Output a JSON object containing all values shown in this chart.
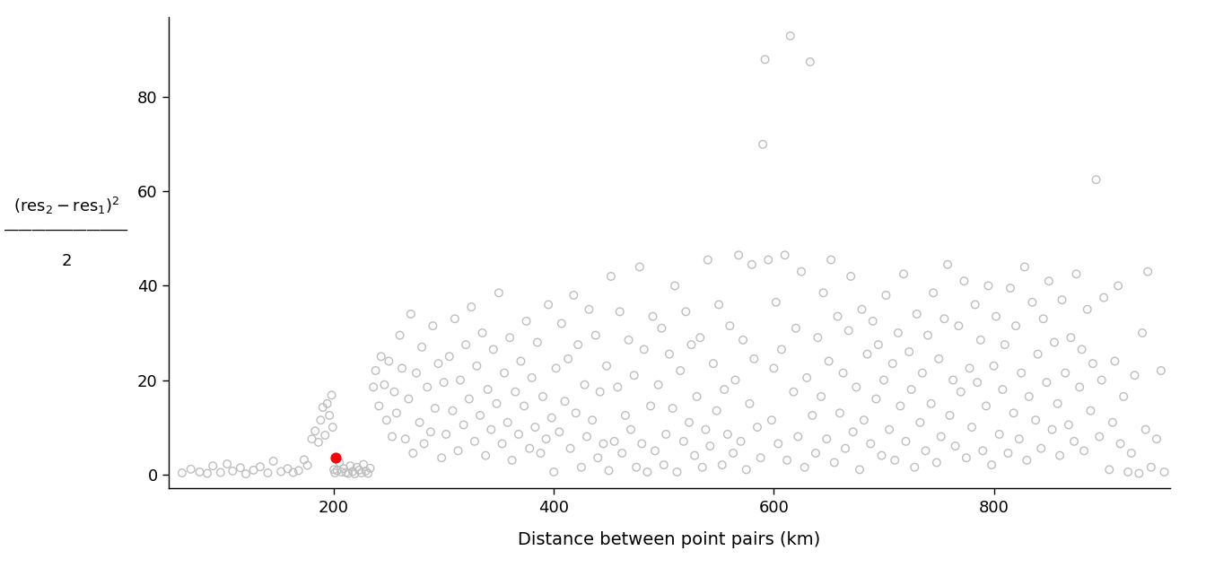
{
  "title": "",
  "xlabel": "Distance between point pairs (km)",
  "xlim": [
    50,
    960
  ],
  "ylim": [
    -3,
    97
  ],
  "xticks": [
    200,
    400,
    600,
    800
  ],
  "yticks": [
    0,
    20,
    40,
    60,
    80
  ],
  "background_color": "#ffffff",
  "circle_color": "#bebebe",
  "red_dot_color": "#ff0000",
  "red_dot_x": 202,
  "red_dot_y": 3.5,
  "scatter_points": [
    [
      62,
      0.3
    ],
    [
      70,
      1.1
    ],
    [
      78,
      0.5
    ],
    [
      85,
      0.2
    ],
    [
      90,
      1.8
    ],
    [
      97,
      0.4
    ],
    [
      103,
      2.2
    ],
    [
      108,
      0.7
    ],
    [
      115,
      1.4
    ],
    [
      120,
      0.1
    ],
    [
      127,
      0.9
    ],
    [
      133,
      1.6
    ],
    [
      140,
      0.3
    ],
    [
      145,
      2.8
    ],
    [
      152,
      0.6
    ],
    [
      158,
      1.2
    ],
    [
      163,
      0.4
    ],
    [
      168,
      0.8
    ],
    [
      173,
      3.1
    ],
    [
      176,
      1.9
    ],
    [
      180,
      7.5
    ],
    [
      183,
      9.2
    ],
    [
      186,
      6.8
    ],
    [
      188,
      11.5
    ],
    [
      190,
      14.2
    ],
    [
      192,
      8.3
    ],
    [
      194,
      15.0
    ],
    [
      196,
      12.5
    ],
    [
      198,
      16.8
    ],
    [
      199,
      10.0
    ],
    [
      200,
      1.0
    ],
    [
      201,
      0.3
    ],
    [
      203,
      0.8
    ],
    [
      205,
      2.5
    ],
    [
      207,
      0.5
    ],
    [
      209,
      1.2
    ],
    [
      211,
      0.4
    ],
    [
      213,
      0.2
    ],
    [
      215,
      1.8
    ],
    [
      217,
      0.6
    ],
    [
      219,
      0.1
    ],
    [
      221,
      1.5
    ],
    [
      223,
      0.9
    ],
    [
      225,
      0.3
    ],
    [
      227,
      2.1
    ],
    [
      229,
      0.7
    ],
    [
      231,
      0.2
    ],
    [
      233,
      1.3
    ],
    [
      236,
      18.5
    ],
    [
      238,
      22.0
    ],
    [
      241,
      14.5
    ],
    [
      243,
      25.0
    ],
    [
      246,
      19.0
    ],
    [
      248,
      11.5
    ],
    [
      250,
      24.0
    ],
    [
      253,
      8.0
    ],
    [
      255,
      17.5
    ],
    [
      257,
      13.0
    ],
    [
      260,
      29.5
    ],
    [
      262,
      22.5
    ],
    [
      265,
      7.5
    ],
    [
      268,
      16.0
    ],
    [
      270,
      34.0
    ],
    [
      272,
      4.5
    ],
    [
      275,
      21.5
    ],
    [
      278,
      11.0
    ],
    [
      280,
      27.0
    ],
    [
      282,
      6.5
    ],
    [
      285,
      18.5
    ],
    [
      288,
      9.0
    ],
    [
      290,
      31.5
    ],
    [
      292,
      14.0
    ],
    [
      295,
      23.5
    ],
    [
      298,
      3.5
    ],
    [
      300,
      19.5
    ],
    [
      302,
      8.5
    ],
    [
      305,
      25.0
    ],
    [
      308,
      13.5
    ],
    [
      310,
      33.0
    ],
    [
      313,
      5.0
    ],
    [
      315,
      20.0
    ],
    [
      318,
      10.5
    ],
    [
      320,
      27.5
    ],
    [
      323,
      16.0
    ],
    [
      325,
      35.5
    ],
    [
      328,
      7.0
    ],
    [
      330,
      23.0
    ],
    [
      333,
      12.5
    ],
    [
      335,
      30.0
    ],
    [
      338,
      4.0
    ],
    [
      340,
      18.0
    ],
    [
      343,
      9.5
    ],
    [
      345,
      26.5
    ],
    [
      348,
      15.0
    ],
    [
      350,
      38.5
    ],
    [
      353,
      6.5
    ],
    [
      355,
      21.5
    ],
    [
      358,
      11.0
    ],
    [
      360,
      29.0
    ],
    [
      362,
      3.0
    ],
    [
      365,
      17.5
    ],
    [
      368,
      8.5
    ],
    [
      370,
      24.0
    ],
    [
      373,
      14.5
    ],
    [
      375,
      32.5
    ],
    [
      378,
      5.5
    ],
    [
      380,
      20.5
    ],
    [
      383,
      10.0
    ],
    [
      385,
      28.0
    ],
    [
      388,
      4.5
    ],
    [
      390,
      16.5
    ],
    [
      393,
      7.5
    ],
    [
      395,
      36.0
    ],
    [
      398,
      12.0
    ],
    [
      400,
      0.5
    ],
    [
      402,
      22.5
    ],
    [
      405,
      9.0
    ],
    [
      407,
      32.0
    ],
    [
      410,
      15.5
    ],
    [
      413,
      24.5
    ],
    [
      415,
      5.5
    ],
    [
      418,
      38.0
    ],
    [
      420,
      13.0
    ],
    [
      422,
      27.5
    ],
    [
      425,
      1.5
    ],
    [
      428,
      19.0
    ],
    [
      430,
      8.0
    ],
    [
      432,
      35.0
    ],
    [
      435,
      11.5
    ],
    [
      438,
      29.5
    ],
    [
      440,
      3.5
    ],
    [
      442,
      17.5
    ],
    [
      445,
      6.5
    ],
    [
      448,
      23.0
    ],
    [
      450,
      0.8
    ],
    [
      452,
      42.0
    ],
    [
      455,
      7.0
    ],
    [
      458,
      18.5
    ],
    [
      460,
      34.5
    ],
    [
      462,
      4.5
    ],
    [
      465,
      12.5
    ],
    [
      468,
      28.5
    ],
    [
      470,
      9.5
    ],
    [
      473,
      21.0
    ],
    [
      475,
      1.5
    ],
    [
      478,
      44.0
    ],
    [
      480,
      6.5
    ],
    [
      482,
      26.5
    ],
    [
      485,
      0.5
    ],
    [
      488,
      14.5
    ],
    [
      490,
      33.5
    ],
    [
      492,
      5.0
    ],
    [
      495,
      19.0
    ],
    [
      498,
      31.0
    ],
    [
      500,
      2.0
    ],
    [
      502,
      8.5
    ],
    [
      505,
      25.5
    ],
    [
      508,
      14.0
    ],
    [
      510,
      40.0
    ],
    [
      512,
      0.5
    ],
    [
      515,
      22.0
    ],
    [
      518,
      7.0
    ],
    [
      520,
      34.5
    ],
    [
      523,
      11.0
    ],
    [
      525,
      27.5
    ],
    [
      528,
      4.0
    ],
    [
      530,
      16.5
    ],
    [
      533,
      29.0
    ],
    [
      535,
      1.5
    ],
    [
      538,
      9.5
    ],
    [
      540,
      45.5
    ],
    [
      542,
      6.0
    ],
    [
      545,
      23.5
    ],
    [
      548,
      13.5
    ],
    [
      550,
      36.0
    ],
    [
      553,
      2.0
    ],
    [
      555,
      18.0
    ],
    [
      558,
      8.5
    ],
    [
      560,
      31.5
    ],
    [
      563,
      4.5
    ],
    [
      565,
      20.0
    ],
    [
      568,
      46.5
    ],
    [
      570,
      7.0
    ],
    [
      572,
      28.5
    ],
    [
      575,
      1.0
    ],
    [
      578,
      15.0
    ],
    [
      580,
      44.5
    ],
    [
      582,
      24.5
    ],
    [
      585,
      10.0
    ],
    [
      588,
      3.5
    ],
    [
      590,
      70.0
    ],
    [
      592,
      88.0
    ],
    [
      595,
      45.5
    ],
    [
      598,
      11.5
    ],
    [
      600,
      22.5
    ],
    [
      602,
      36.5
    ],
    [
      604,
      6.5
    ],
    [
      607,
      26.5
    ],
    [
      610,
      46.5
    ],
    [
      612,
      3.0
    ],
    [
      615,
      93.0
    ],
    [
      618,
      17.5
    ],
    [
      620,
      31.0
    ],
    [
      622,
      8.0
    ],
    [
      625,
      43.0
    ],
    [
      628,
      1.5
    ],
    [
      630,
      20.5
    ],
    [
      633,
      87.5
    ],
    [
      635,
      12.5
    ],
    [
      638,
      4.5
    ],
    [
      640,
      29.0
    ],
    [
      643,
      16.5
    ],
    [
      645,
      38.5
    ],
    [
      648,
      7.5
    ],
    [
      650,
      24.0
    ],
    [
      652,
      45.5
    ],
    [
      655,
      2.5
    ],
    [
      658,
      33.5
    ],
    [
      660,
      13.0
    ],
    [
      663,
      21.5
    ],
    [
      665,
      5.5
    ],
    [
      668,
      30.5
    ],
    [
      670,
      42.0
    ],
    [
      672,
      9.0
    ],
    [
      675,
      18.5
    ],
    [
      678,
      1.0
    ],
    [
      680,
      35.0
    ],
    [
      682,
      11.5
    ],
    [
      685,
      25.5
    ],
    [
      688,
      6.5
    ],
    [
      690,
      32.5
    ],
    [
      693,
      16.0
    ],
    [
      695,
      27.5
    ],
    [
      698,
      4.0
    ],
    [
      700,
      20.0
    ],
    [
      702,
      38.0
    ],
    [
      705,
      9.5
    ],
    [
      708,
      23.5
    ],
    [
      710,
      3.0
    ],
    [
      713,
      30.0
    ],
    [
      715,
      14.5
    ],
    [
      718,
      42.5
    ],
    [
      720,
      7.0
    ],
    [
      723,
      26.0
    ],
    [
      725,
      18.0
    ],
    [
      728,
      1.5
    ],
    [
      730,
      34.0
    ],
    [
      733,
      11.0
    ],
    [
      735,
      21.5
    ],
    [
      738,
      5.0
    ],
    [
      740,
      29.5
    ],
    [
      743,
      15.0
    ],
    [
      745,
      38.5
    ],
    [
      748,
      2.5
    ],
    [
      750,
      24.5
    ],
    [
      752,
      8.0
    ],
    [
      755,
      33.0
    ],
    [
      758,
      44.5
    ],
    [
      760,
      12.5
    ],
    [
      763,
      20.0
    ],
    [
      765,
      6.0
    ],
    [
      768,
      31.5
    ],
    [
      770,
      17.5
    ],
    [
      773,
      41.0
    ],
    [
      775,
      3.5
    ],
    [
      778,
      22.5
    ],
    [
      780,
      10.0
    ],
    [
      783,
      36.0
    ],
    [
      785,
      19.5
    ],
    [
      788,
      28.5
    ],
    [
      790,
      5.0
    ],
    [
      793,
      14.5
    ],
    [
      795,
      40.0
    ],
    [
      798,
      2.0
    ],
    [
      800,
      23.0
    ],
    [
      802,
      33.5
    ],
    [
      805,
      8.5
    ],
    [
      808,
      18.0
    ],
    [
      810,
      27.5
    ],
    [
      813,
      4.5
    ],
    [
      815,
      39.5
    ],
    [
      818,
      13.0
    ],
    [
      820,
      31.5
    ],
    [
      823,
      7.5
    ],
    [
      825,
      21.5
    ],
    [
      828,
      44.0
    ],
    [
      830,
      3.0
    ],
    [
      832,
      16.5
    ],
    [
      835,
      36.5
    ],
    [
      838,
      11.5
    ],
    [
      840,
      25.5
    ],
    [
      843,
      5.5
    ],
    [
      845,
      33.0
    ],
    [
      848,
      19.5
    ],
    [
      850,
      41.0
    ],
    [
      853,
      9.5
    ],
    [
      855,
      28.0
    ],
    [
      858,
      15.0
    ],
    [
      860,
      4.0
    ],
    [
      862,
      37.0
    ],
    [
      865,
      21.5
    ],
    [
      868,
      10.5
    ],
    [
      870,
      29.0
    ],
    [
      873,
      7.0
    ],
    [
      875,
      42.5
    ],
    [
      878,
      18.5
    ],
    [
      880,
      26.5
    ],
    [
      882,
      5.0
    ],
    [
      885,
      35.0
    ],
    [
      888,
      13.5
    ],
    [
      890,
      23.5
    ],
    [
      893,
      62.5
    ],
    [
      896,
      8.0
    ],
    [
      898,
      20.0
    ],
    [
      900,
      37.5
    ],
    [
      905,
      1.0
    ],
    [
      908,
      11.0
    ],
    [
      910,
      24.0
    ],
    [
      913,
      40.0
    ],
    [
      915,
      6.5
    ],
    [
      918,
      16.5
    ],
    [
      922,
      0.5
    ],
    [
      925,
      4.5
    ],
    [
      928,
      21.0
    ],
    [
      932,
      0.2
    ],
    [
      935,
      30.0
    ],
    [
      938,
      9.5
    ],
    [
      940,
      43.0
    ],
    [
      943,
      1.5
    ],
    [
      948,
      7.5
    ],
    [
      952,
      22.0
    ],
    [
      955,
      0.5
    ]
  ]
}
